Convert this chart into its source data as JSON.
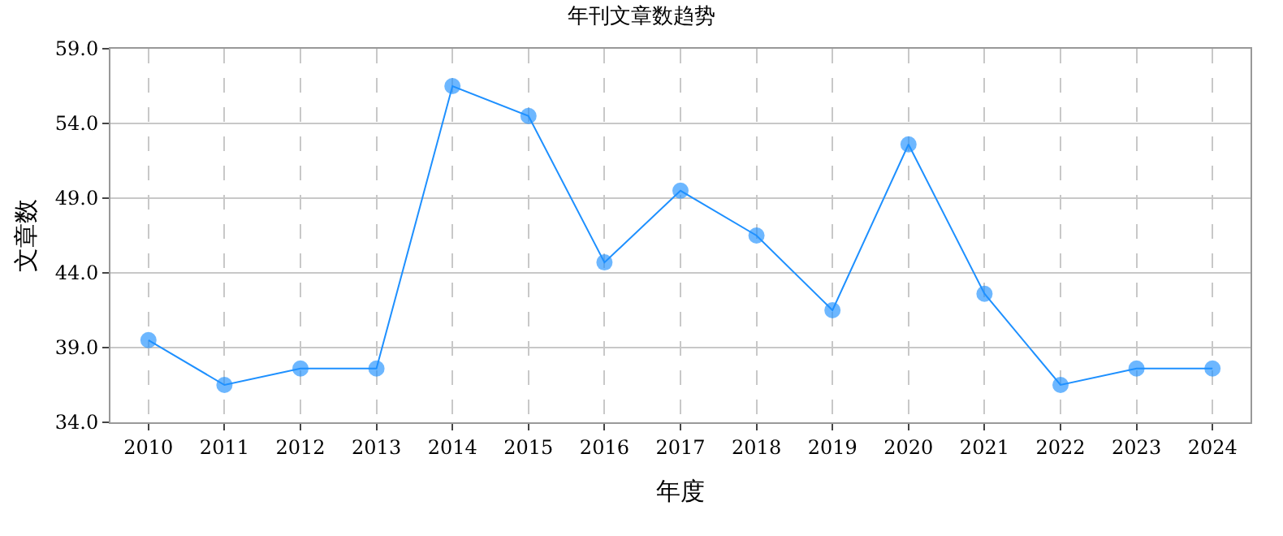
{
  "chart_data": {
    "type": "line",
    "title": "年刊文章数趋势",
    "xlabel": "年度",
    "ylabel": "文章数",
    "categories": [
      "2010",
      "2011",
      "2012",
      "2013",
      "2014",
      "2015",
      "2016",
      "2017",
      "2018",
      "2019",
      "2020",
      "2021",
      "2022",
      "2023",
      "2024"
    ],
    "series": [
      {
        "color": "#1e90ff",
        "values": [
          39.5,
          36.5,
          37.6,
          37.6,
          56.5,
          54.5,
          44.7,
          49.5,
          46.5,
          41.5,
          52.6,
          42.6,
          36.5,
          37.6,
          37.6
        ]
      }
    ],
    "ylim": [
      34,
      59
    ],
    "yticks": [
      {
        "value": 34,
        "label": "34.0"
      },
      {
        "value": 39,
        "label": "39.0"
      },
      {
        "value": 44,
        "label": "44.0"
      },
      {
        "value": 49,
        "label": "49.0"
      },
      {
        "value": 54,
        "label": "54.0"
      },
      {
        "value": 59,
        "label": "59.0"
      }
    ],
    "grid": true,
    "marker": "circle",
    "line_style": "solid"
  }
}
